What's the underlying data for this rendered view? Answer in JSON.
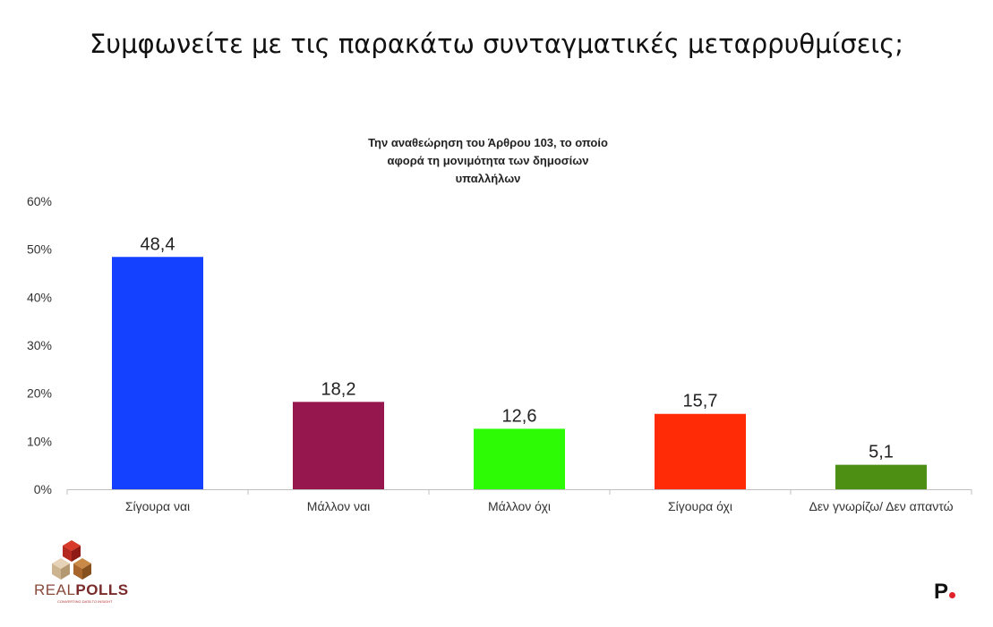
{
  "page": {
    "title": "Συμφωνείτε με τις παρακάτω συνταγματικές μεταρρυθμίσεις;"
  },
  "chart_data": {
    "type": "bar",
    "title": "Την αναθεώρηση του Άρθρου 103, το οποίο αφορά τη μονιμότητα των δημοσίων υπαλλήλων",
    "title_lines": [
      "Την αναθεώρηση του Άρθρου 103, το οποίο",
      "αφορά τη μονιμότητα των δημοσίων",
      "υπαλλήλων"
    ],
    "categories": [
      "Σίγουρα ναι",
      "Μάλλον ναι",
      "Μάλλον όχι",
      "Σίγουρα όχι",
      "Δεν γνωρίζω/ Δεν απαντώ"
    ],
    "values": [
      48.4,
      18.2,
      12.6,
      15.7,
      5.1
    ],
    "data_labels": [
      "48,4",
      "18,2",
      "12,6",
      "15,7",
      "5,1"
    ],
    "colors": [
      "#1440ff",
      "#96174e",
      "#2dfb05",
      "#ff2a06",
      "#4d8f12"
    ],
    "ylim": [
      0,
      60
    ],
    "yticks": [
      0,
      10,
      20,
      30,
      40,
      50,
      60
    ],
    "ytick_labels": [
      "0%",
      "10%",
      "20%",
      "30%",
      "40%",
      "50%",
      "60%"
    ],
    "grid": false,
    "legend": "none"
  },
  "logos": {
    "realpolls_part1": "REAL",
    "realpolls_part2": "POLLS",
    "realpolls_tagline": "CONVERTING DATA TO INSIGHT",
    "publisher": "P"
  }
}
